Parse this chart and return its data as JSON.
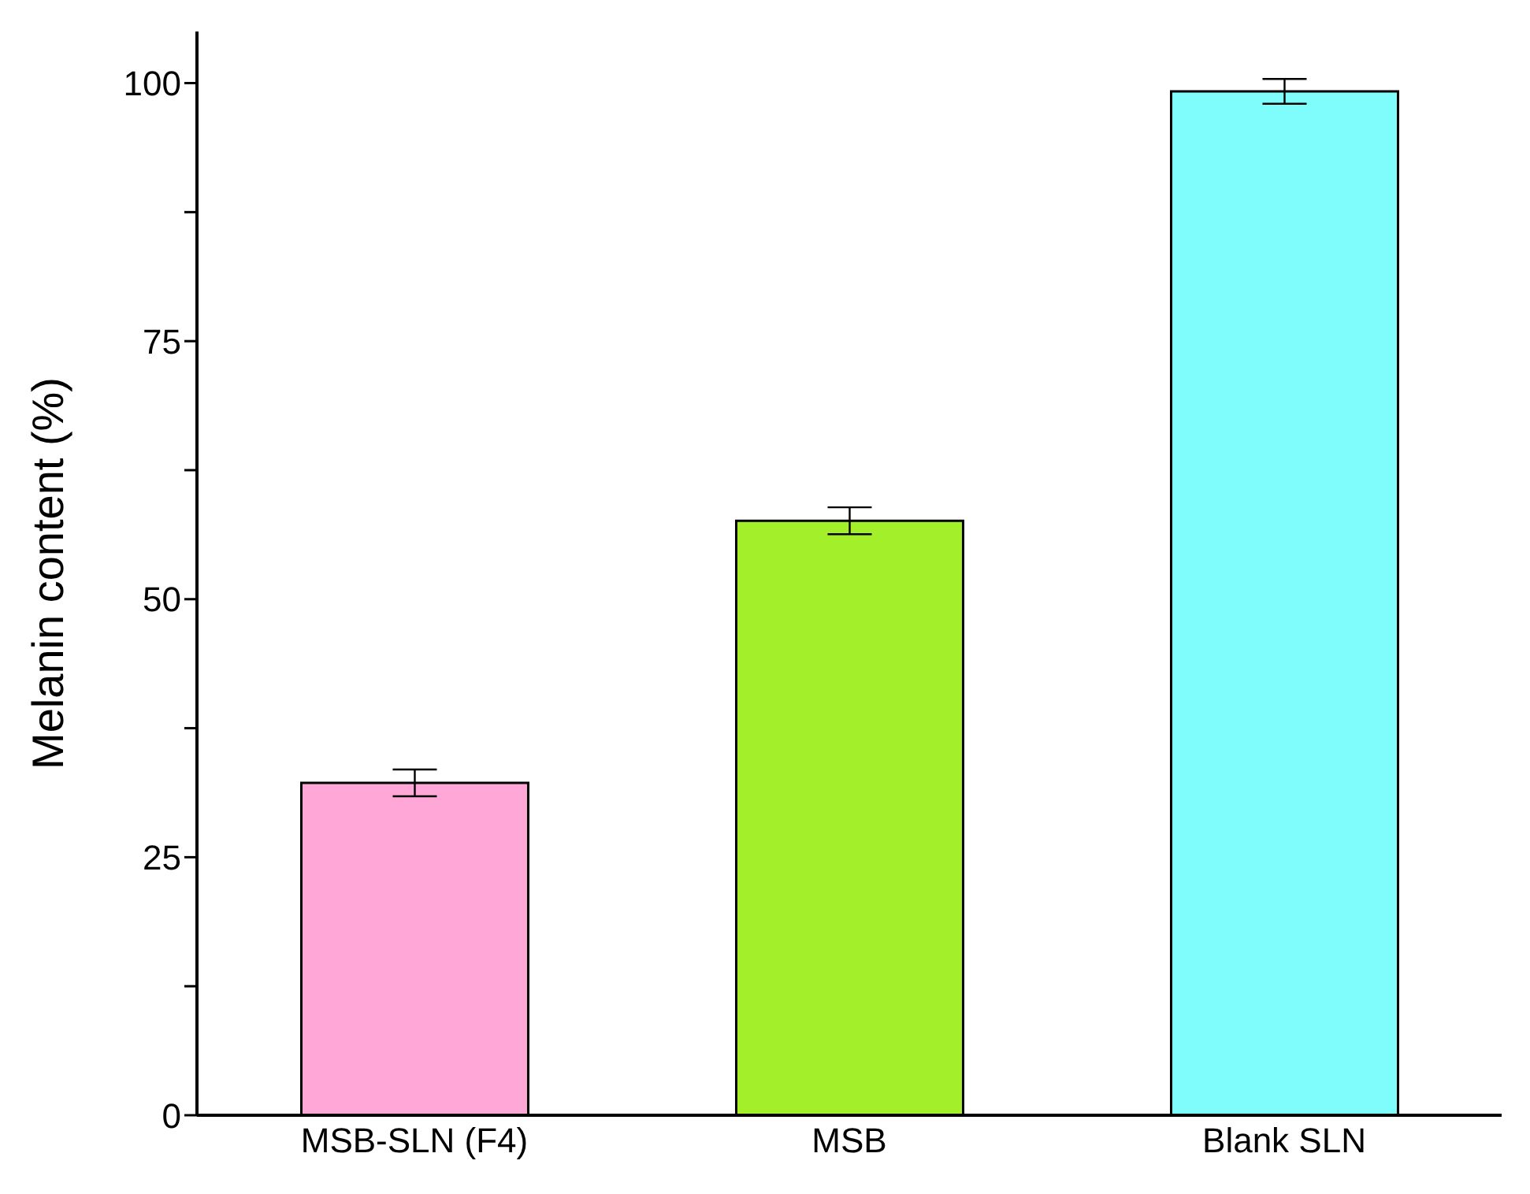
{
  "chart_data": {
    "type": "bar",
    "ylabel": "Melanin content (%)",
    "categories": [
      "MSB-SLN (F4)",
      "MSB",
      "Blank SLN"
    ],
    "values": [
      32.2,
      57.6,
      99.2
    ],
    "errors": [
      1.3,
      1.3,
      1.2
    ],
    "colors": [
      "#ffa8d8",
      "#a3ef2a",
      "#7ffcfc"
    ],
    "ylim": [
      0,
      105
    ],
    "yticks": [
      0,
      {
        "value": 12.5,
        "label": null
      },
      25,
      {
        "value": 37.5,
        "label": null
      },
      50,
      {
        "value": 62.5,
        "label": null
      },
      75,
      {
        "value": 87.5,
        "label": null
      },
      100
    ],
    "grid": false,
    "legend": false
  }
}
